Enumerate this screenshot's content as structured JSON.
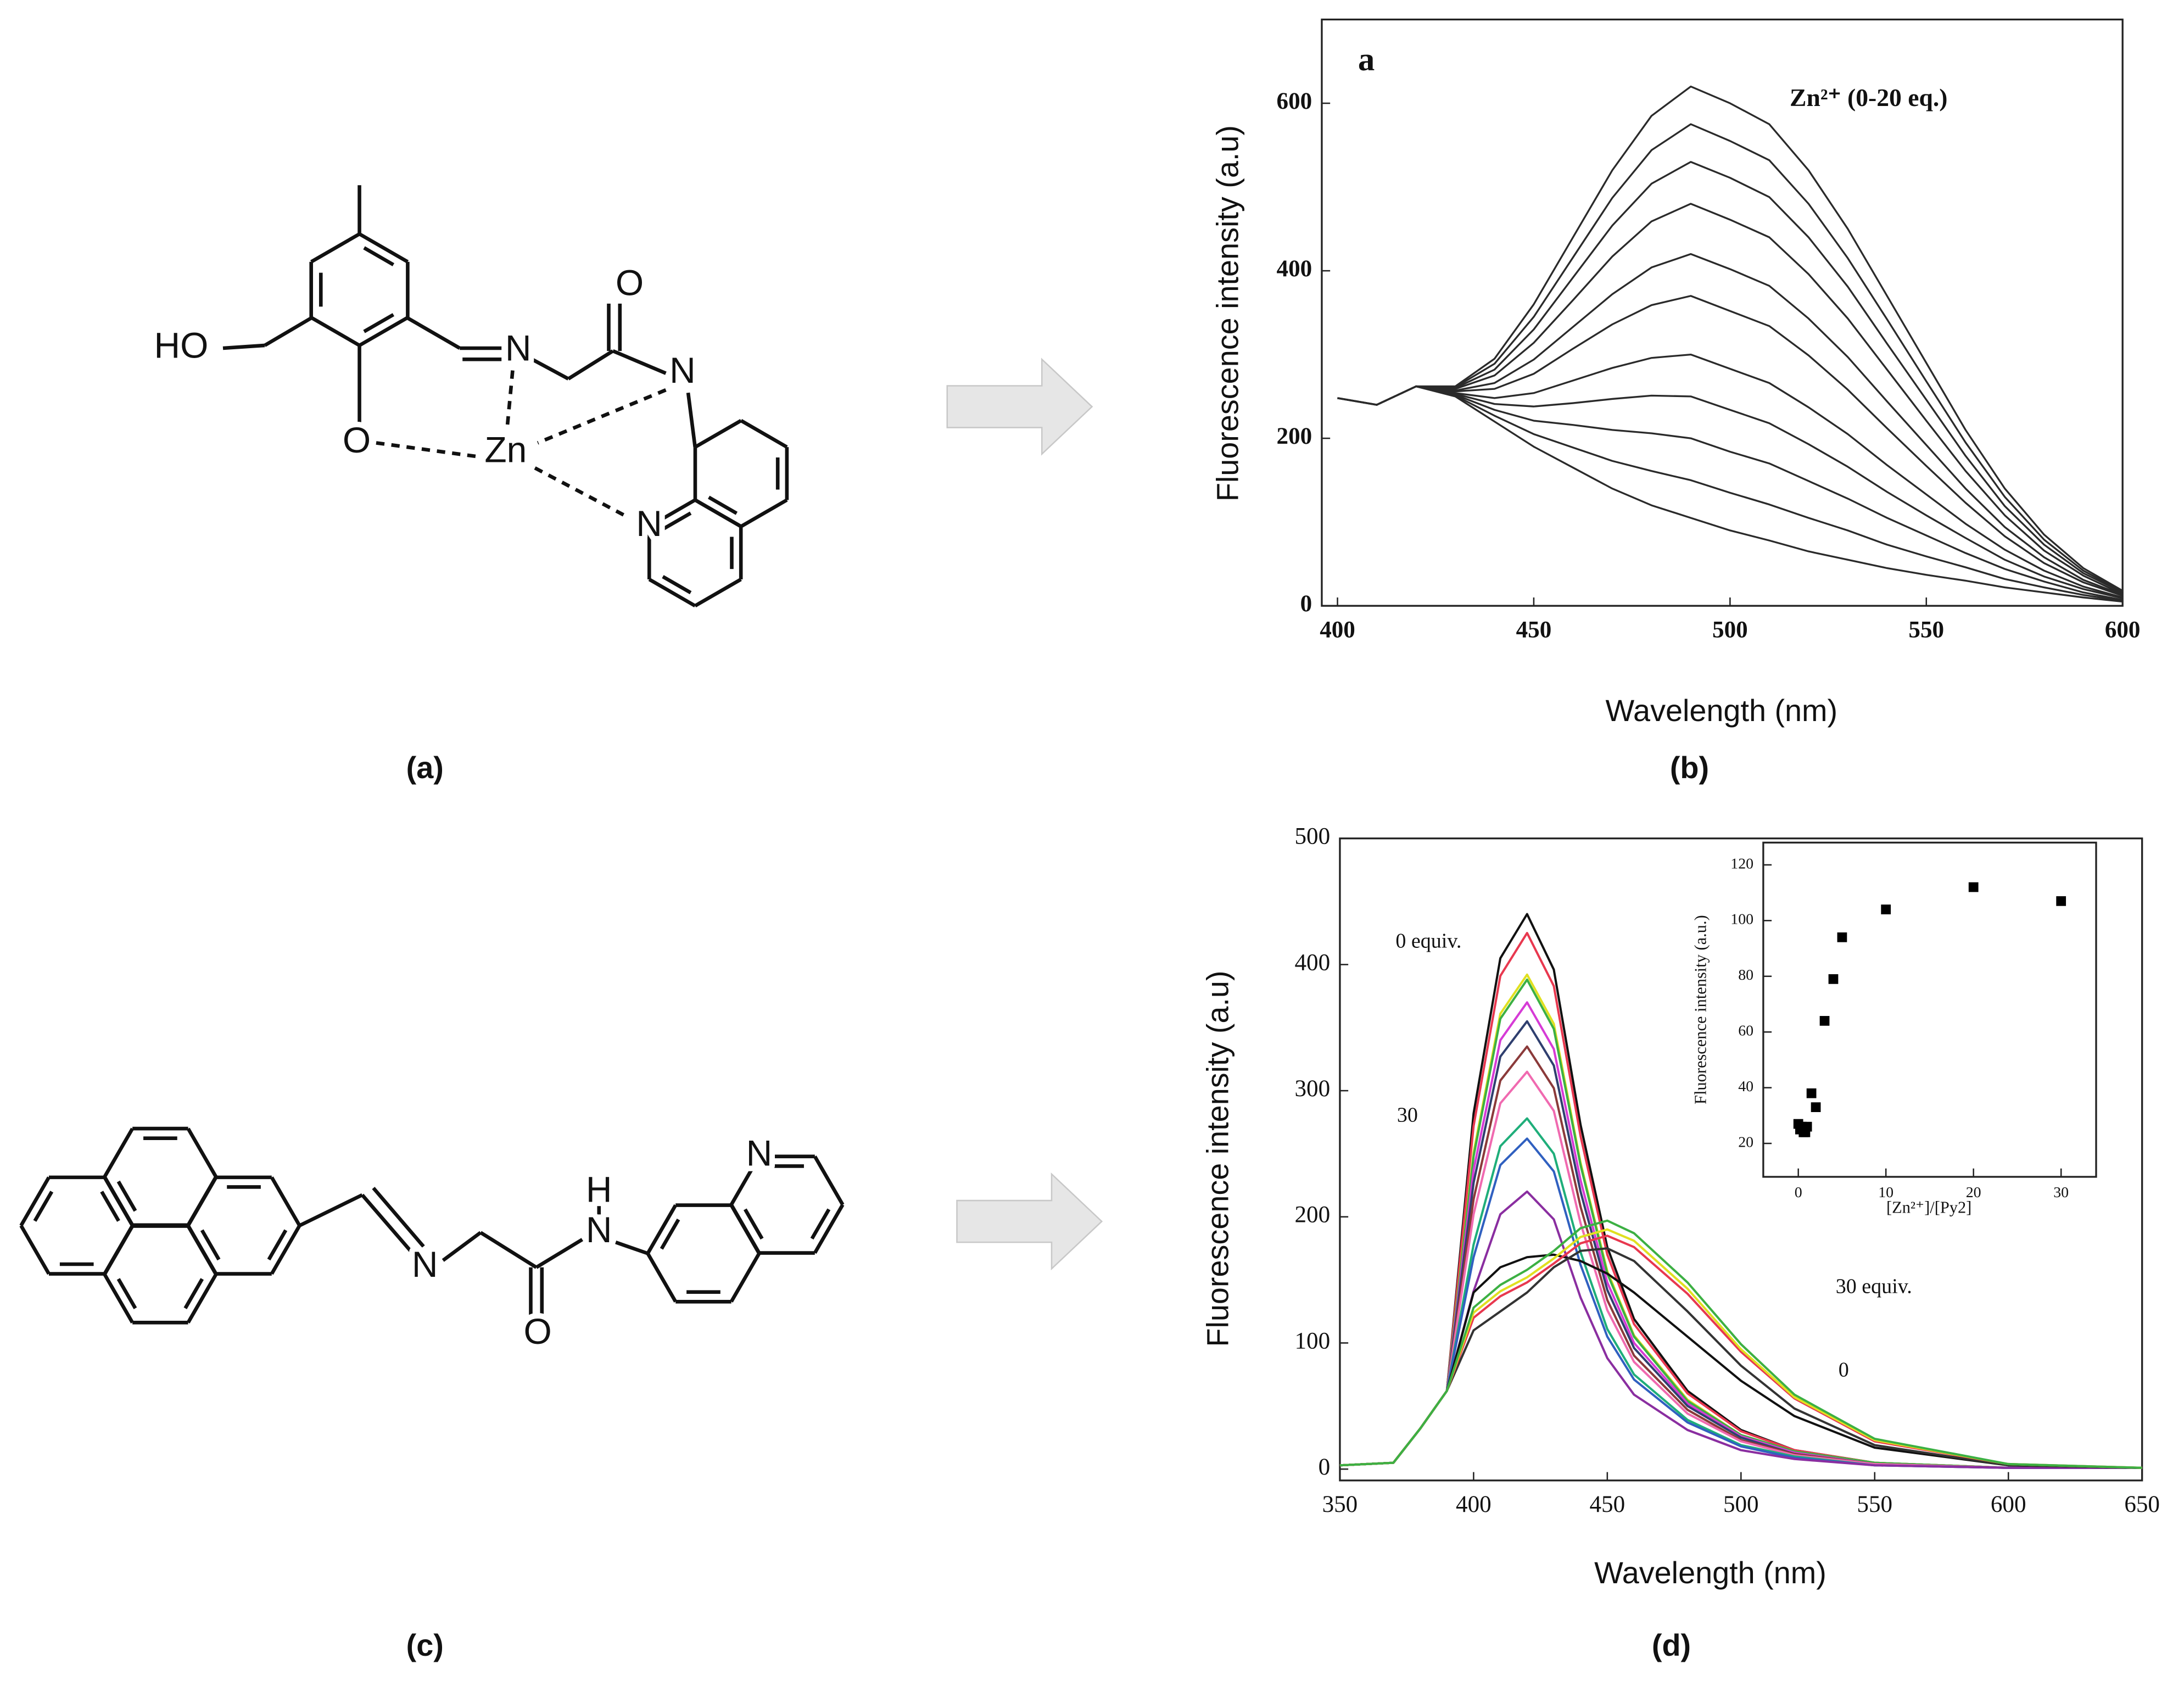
{
  "panel_labels": [
    "(a)",
    "(b)",
    "(c)",
    "(d)"
  ],
  "structures": [
    {
      "atoms": [
        "HO",
        "O",
        "N",
        "O",
        "N",
        "Zn",
        "N"
      ]
    },
    {
      "atoms": [
        "N",
        "O",
        "N",
        "H",
        "N"
      ]
    }
  ],
  "chart_data": [
    {
      "type": "line",
      "xlabel": "Wavelength (nm)",
      "ylabel": "Fluorescence intensity (a.u)",
      "annotations": [
        "a",
        "Zn²⁺ (0-20 eq.)"
      ],
      "xlim": [
        396,
        600
      ],
      "ylim": [
        0,
        700
      ],
      "xticks": [
        400,
        450,
        500,
        550,
        600
      ],
      "yticks": [
        0,
        200,
        400,
        600
      ],
      "x": [
        400,
        410,
        420,
        430,
        440,
        450,
        460,
        470,
        480,
        490,
        500,
        510,
        520,
        530,
        540,
        550,
        560,
        570,
        580,
        590,
        600
      ],
      "series": [
        {
          "color": "#2a2a2a",
          "values": [
            248,
            240,
            262,
            250,
            220,
            190,
            165,
            140,
            120,
            105,
            90,
            78,
            65,
            55,
            45,
            37,
            30,
            22,
            16,
            10,
            5
          ]
        },
        {
          "color": "#2a2a2a",
          "values": [
            248,
            240,
            262,
            251,
            227,
            205,
            189,
            173,
            161,
            150,
            135,
            121,
            105,
            90,
            73,
            59,
            46,
            32,
            22,
            13,
            6
          ]
        },
        {
          "color": "#2a2a2a",
          "values": [
            248,
            240,
            262,
            252,
            234,
            221,
            216,
            210,
            206,
            200,
            184,
            170,
            149,
            128,
            105,
            84,
            63,
            44,
            29,
            16,
            7
          ]
        },
        {
          "color": "#2a2a2a",
          "values": [
            248,
            240,
            262,
            253,
            241,
            238,
            242,
            247,
            251,
            250,
            234,
            218,
            193,
            166,
            136,
            108,
            81,
            55,
            35,
            20,
            9
          ]
        },
        {
          "color": "#2a2a2a",
          "values": [
            248,
            240,
            262,
            254,
            248,
            254,
            269,
            284,
            296,
            300,
            283,
            266,
            237,
            205,
            168,
            133,
            98,
            67,
            42,
            23,
            10
          ]
        },
        {
          "color": "#2a2a2a",
          "values": [
            248,
            240,
            262,
            256,
            259,
            277,
            307,
            336,
            359,
            370,
            352,
            334,
            299,
            258,
            212,
            167,
            123,
            83,
            51,
            28,
            12
          ]
        },
        {
          "color": "#2a2a2a",
          "values": [
            248,
            240,
            262,
            257,
            266,
            294,
            333,
            372,
            404,
            420,
            402,
            382,
            343,
            297,
            244,
            192,
            140,
            94,
            58,
            31,
            13
          ]
        },
        {
          "color": "#2a2a2a",
          "values": [
            248,
            240,
            262,
            259,
            275,
            314,
            365,
            417,
            459,
            480,
            461,
            440,
            396,
            343,
            282,
            221,
            161,
            108,
            66,
            36,
            14
          ]
        },
        {
          "color": "#2a2a2a",
          "values": [
            248,
            240,
            262,
            260,
            282,
            330,
            392,
            454,
            504,
            530,
            511,
            488,
            440,
            381,
            313,
            246,
            179,
            119,
            73,
            39,
            16
          ]
        },
        {
          "color": "#2a2a2a",
          "values": [
            248,
            240,
            262,
            261,
            289,
            345,
            416,
            487,
            544,
            575,
            555,
            532,
            480,
            415,
            342,
            268,
            195,
            130,
            79,
            42,
            17
          ]
        },
        {
          "color": "#2a2a2a",
          "values": [
            248,
            240,
            262,
            262,
            295,
            360,
            440,
            520,
            585,
            620,
            600,
            575,
            520,
            450,
            370,
            290,
            210,
            140,
            85,
            45,
            18
          ]
        }
      ]
    },
    {
      "type": "line",
      "xlabel": "Wavelength (nm)",
      "ylabel": "Fluorescence intensity (a.u)",
      "annotations": [
        "0 equiv.",
        "30",
        "30 equiv.",
        "0"
      ],
      "xlim": [
        350,
        650
      ],
      "ylim": [
        -9,
        500
      ],
      "xticks": [
        350,
        400,
        450,
        500,
        550,
        600,
        650
      ],
      "yticks": [
        0,
        100,
        200,
        300,
        400,
        500
      ],
      "x": [
        350,
        370,
        380,
        390,
        400,
        410,
        420,
        430,
        440,
        450,
        460,
        480,
        500,
        520,
        550,
        600,
        650
      ],
      "series": [
        {
          "color": "#111111",
          "values": [
            3,
            5,
            32,
            62,
            282,
            405,
            440,
            396,
            273,
            176,
            119,
            62,
            31,
            15,
            5,
            1,
            1
          ]
        },
        {
          "color": "#e8384f",
          "values": [
            3,
            5,
            32,
            62,
            272,
            391,
            425,
            383,
            264,
            170,
            115,
            60,
            30,
            15,
            5,
            1,
            1
          ]
        },
        {
          "color": "#e0e020",
          "values": [
            3,
            5,
            32,
            62,
            251,
            361,
            392,
            353,
            243,
            157,
            106,
            55,
            27,
            14,
            5,
            1,
            1
          ]
        },
        {
          "color": "#3cb043",
          "values": [
            3,
            5,
            32,
            62,
            248,
            357,
            388,
            349,
            241,
            155,
            105,
            54,
            27,
            14,
            5,
            1,
            1
          ]
        },
        {
          "color": "#d63bd6",
          "values": [
            3,
            5,
            32,
            62,
            237,
            340,
            370,
            333,
            229,
            148,
            100,
            52,
            26,
            13,
            4,
            1,
            1
          ]
        },
        {
          "color": "#2f3f6f",
          "values": [
            3,
            5,
            32,
            62,
            227,
            327,
            355,
            320,
            220,
            142,
            96,
            50,
            25,
            12,
            4,
            1,
            1
          ]
        },
        {
          "color": "#8b3a3a",
          "values": [
            3,
            5,
            32,
            62,
            214,
            308,
            335,
            302,
            208,
            134,
            90,
            47,
            23,
            12,
            4,
            1,
            1
          ]
        },
        {
          "color": "#f06ab0",
          "values": [
            3,
            5,
            32,
            62,
            202,
            290,
            315,
            284,
            195,
            126,
            85,
            44,
            22,
            11,
            4,
            1,
            1
          ]
        },
        {
          "color": "#1fae7a",
          "values": [
            3,
            5,
            32,
            62,
            178,
            256,
            278,
            250,
            172,
            111,
            75,
            39,
            19,
            10,
            3,
            1,
            1
          ]
        },
        {
          "color": "#3060c0",
          "values": [
            3,
            5,
            32,
            62,
            168,
            241,
            262,
            236,
            162,
            105,
            71,
            37,
            18,
            9,
            3,
            1,
            1
          ]
        },
        {
          "color": "#8a2ea0",
          "values": [
            3,
            5,
            32,
            62,
            141,
            202,
            220,
            198,
            136,
            88,
            59,
            31,
            15,
            8,
            3,
            1,
            1
          ]
        },
        {
          "color": "#111111",
          "values": [
            3,
            5,
            32,
            62,
            140,
            160,
            168,
            170,
            165,
            155,
            140,
            105,
            70,
            42,
            17,
            3,
            1
          ]
        },
        {
          "color": "#333333",
          "values": [
            3,
            5,
            32,
            62,
            110,
            125,
            140,
            160,
            173,
            175,
            165,
            125,
            82,
            48,
            19,
            3,
            1
          ]
        },
        {
          "color": "#e8384f",
          "values": [
            3,
            5,
            32,
            62,
            120,
            137,
            148,
            163,
            179,
            185,
            176,
            139,
            93,
            56,
            22,
            4,
            1
          ]
        },
        {
          "color": "#e0e020",
          "values": [
            3,
            5,
            32,
            62,
            124,
            141,
            152,
            167,
            184,
            190,
            181,
            143,
            95,
            57,
            23,
            4,
            1
          ]
        },
        {
          "color": "#3cb043",
          "values": [
            3,
            5,
            32,
            62,
            128,
            146,
            158,
            173,
            191,
            197,
            187,
            148,
            99,
            59,
            24,
            4,
            1
          ]
        }
      ]
    },
    {
      "type": "scatter",
      "xlabel": "[Zn²⁺]/[Py2]",
      "ylabel": "Fluorescence intensity (a.u.)",
      "color": "#000000",
      "xlim": [
        -4,
        34
      ],
      "ylim": [
        8,
        128
      ],
      "xticks": [
        0,
        10,
        20,
        30
      ],
      "yticks": [
        20,
        40,
        60,
        80,
        100,
        120
      ],
      "x": [
        0,
        0.2,
        0.4,
        0.6,
        0.8,
        1,
        1.5,
        2,
        3,
        4,
        5,
        10,
        20,
        30
      ],
      "values": [
        27,
        25,
        26,
        24,
        24,
        26,
        38,
        33,
        64,
        79,
        94,
        104,
        112,
        107
      ]
    }
  ]
}
